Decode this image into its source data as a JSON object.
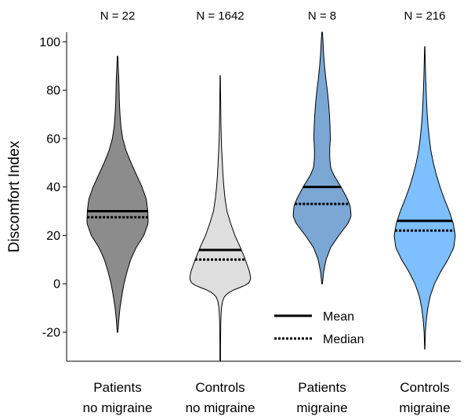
{
  "chart_data": {
    "type": "violin",
    "ylabel": "Discomfort Index",
    "ylim": [
      -32,
      104
    ],
    "yticks": [
      -20,
      0,
      20,
      40,
      60,
      80,
      100
    ],
    "grid": false,
    "legend": {
      "placement": "bottom-right",
      "mean_label": "Mean",
      "median_label": "Median"
    },
    "groups": [
      {
        "line1": "Patients",
        "line2": "no migraine",
        "n_label": "N = 22",
        "n": 22,
        "color": "#8c8c8c",
        "mean": 30,
        "median": 27.5,
        "min": -20,
        "max": 94,
        "profile_y": [
          -20,
          -15,
          -10,
          -5,
          0,
          5,
          10,
          15,
          20,
          25,
          30,
          35,
          40,
          45,
          50,
          55,
          60,
          65,
          70,
          75,
          80,
          85,
          90,
          94
        ],
        "profile_w": [
          0.01,
          0.04,
          0.08,
          0.14,
          0.21,
          0.31,
          0.43,
          0.61,
          0.86,
          1.0,
          0.99,
          0.94,
          0.8,
          0.62,
          0.44,
          0.28,
          0.17,
          0.11,
          0.08,
          0.06,
          0.05,
          0.04,
          0.02,
          0.01
        ]
      },
      {
        "line1": "Controls",
        "line2": "no migraine",
        "n_label": "N = 1642",
        "n": 1642,
        "color": "#dedede",
        "mean": 14,
        "median": 10,
        "min": -32,
        "max": 86,
        "profile_y": [
          -32,
          -25,
          -20,
          -15,
          -10,
          -7,
          -5,
          -3,
          -1,
          0,
          2,
          5,
          10,
          15,
          20,
          25,
          30,
          35,
          40,
          45,
          50,
          55,
          60,
          65,
          70,
          75,
          80,
          86
        ],
        "profile_w": [
          0.01,
          0.01,
          0.015,
          0.02,
          0.04,
          0.08,
          0.15,
          0.35,
          0.75,
          0.92,
          1.0,
          0.96,
          0.82,
          0.66,
          0.48,
          0.34,
          0.22,
          0.16,
          0.12,
          0.09,
          0.07,
          0.05,
          0.035,
          0.025,
          0.02,
          0.015,
          0.01,
          0.005
        ]
      },
      {
        "line1": "Patients",
        "line2": "migraine",
        "n_label": "N = 8",
        "n": 8,
        "color": "#7ba7d4",
        "mean": 40,
        "median": 33,
        "min": 0,
        "max": 104,
        "profile_y": [
          0,
          5,
          10,
          15,
          20,
          25,
          28,
          32,
          35,
          40,
          45,
          48,
          52,
          56,
          60,
          65,
          70,
          75,
          80,
          85,
          90,
          95,
          100,
          104
        ],
        "profile_w": [
          0.01,
          0.05,
          0.13,
          0.28,
          0.55,
          0.85,
          0.95,
          0.92,
          0.83,
          0.62,
          0.38,
          0.28,
          0.25,
          0.25,
          0.27,
          0.26,
          0.24,
          0.21,
          0.17,
          0.12,
          0.08,
          0.05,
          0.03,
          0.01
        ]
      },
      {
        "line1": "Controls",
        "line2": "migraine",
        "n_label": "N = 216",
        "n": 216,
        "color": "#7dbfff",
        "mean": 26,
        "median": 22,
        "min": -27,
        "max": 98,
        "profile_y": [
          -27,
          -20,
          -15,
          -10,
          -5,
          0,
          5,
          10,
          15,
          20,
          25,
          30,
          35,
          40,
          45,
          50,
          55,
          60,
          65,
          70,
          75,
          80,
          85,
          90,
          98
        ],
        "profile_w": [
          0.005,
          0.02,
          0.05,
          0.1,
          0.18,
          0.32,
          0.52,
          0.76,
          0.95,
          1.0,
          0.93,
          0.8,
          0.64,
          0.5,
          0.38,
          0.28,
          0.2,
          0.15,
          0.11,
          0.08,
          0.06,
          0.045,
          0.03,
          0.02,
          0.005
        ]
      }
    ]
  }
}
